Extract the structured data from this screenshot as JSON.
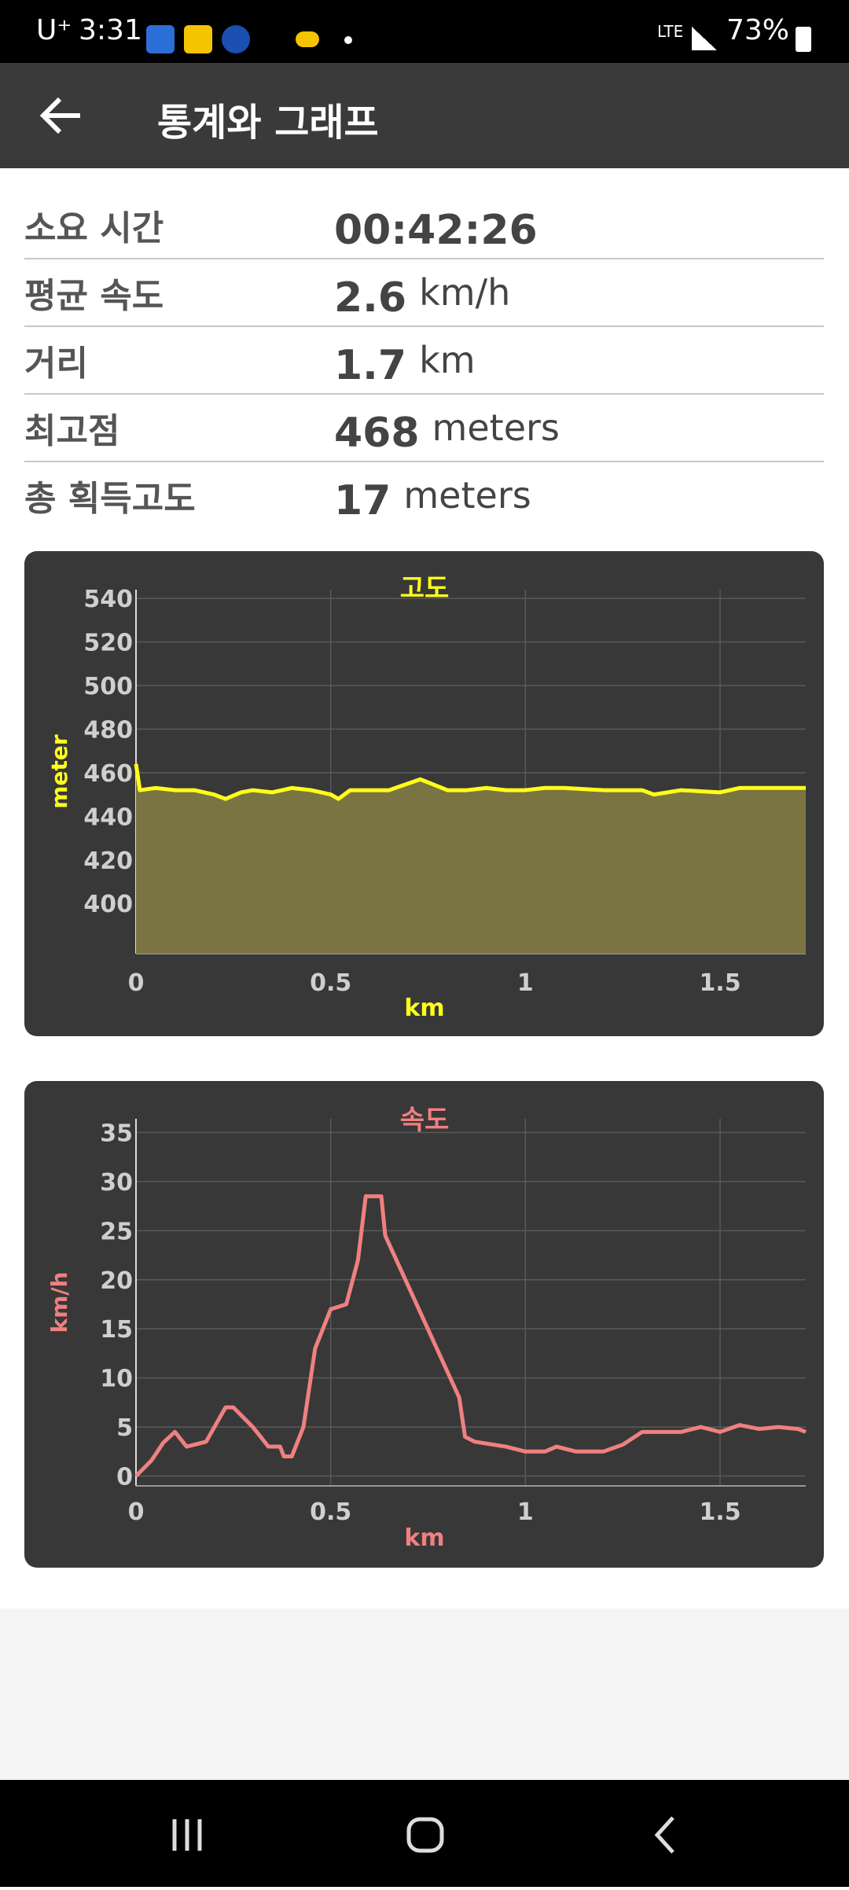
{
  "status_bar": {
    "carrier": "U⁺",
    "time": "3:31",
    "network": "LTE",
    "battery": "73%"
  },
  "app_bar": {
    "title": "통계와 그래프"
  },
  "stats": [
    {
      "label": "소요 시간",
      "value": "00:42:26"
    },
    {
      "label": "평균 속도",
      "value": "2.6",
      "unit": "km/h"
    },
    {
      "label": "거리",
      "value": "1.7",
      "unit": "km"
    },
    {
      "label": "최고점",
      "value": "468",
      "unit": "meters"
    },
    {
      "label": "총 획득고도",
      "value": "17",
      "unit": "meters"
    }
  ],
  "chart_data": [
    {
      "type": "area",
      "title": "고도",
      "x_label": "km",
      "y_label": "meter",
      "x": [
        0,
        0.01,
        0.05,
        0.1,
        0.15,
        0.2,
        0.23,
        0.27,
        0.3,
        0.35,
        0.4,
        0.45,
        0.5,
        0.52,
        0.55,
        0.6,
        0.65,
        0.73,
        0.8,
        0.85,
        0.9,
        0.95,
        1.0,
        1.05,
        1.1,
        1.2,
        1.3,
        1.33,
        1.4,
        1.5,
        1.55,
        1.6,
        1.7,
        1.72
      ],
      "series": [
        {
          "name": "고도",
          "color": "#ffff1a",
          "fill": "#7a7443",
          "values": [
            464,
            452,
            453,
            452,
            452,
            450,
            448,
            451,
            452,
            451,
            453,
            452,
            450,
            448,
            452,
            452,
            452,
            457,
            452,
            452,
            453,
            452,
            452,
            453,
            453,
            452,
            452,
            450,
            452,
            451,
            453,
            453,
            453,
            453
          ]
        }
      ],
      "xlim": [
        0,
        1.72
      ],
      "xticks": [
        0,
        0.5,
        1,
        1.5
      ],
      "ylim": [
        377,
        544
      ],
      "yticks": [
        400,
        420,
        440,
        460,
        480,
        500,
        520,
        540
      ],
      "grid": true
    },
    {
      "type": "line",
      "title": "속도",
      "x_label": "km",
      "y_label": "km/h",
      "x": [
        0,
        0.04,
        0.07,
        0.1,
        0.13,
        0.18,
        0.23,
        0.25,
        0.3,
        0.34,
        0.37,
        0.38,
        0.4,
        0.43,
        0.46,
        0.5,
        0.54,
        0.57,
        0.59,
        0.63,
        0.64,
        0.83,
        0.845,
        0.87,
        0.95,
        1.0,
        1.05,
        1.08,
        1.13,
        1.2,
        1.25,
        1.3,
        1.35,
        1.4,
        1.45,
        1.5,
        1.55,
        1.6,
        1.65,
        1.7,
        1.72
      ],
      "series": [
        {
          "name": "속도",
          "color": "#f08080",
          "values": [
            0,
            1.6,
            3.4,
            4.5,
            3,
            3.5,
            7,
            7,
            5,
            3,
            3,
            2,
            2,
            5,
            13,
            17,
            17.5,
            22,
            28.5,
            28.5,
            24.5,
            8,
            4,
            3.5,
            3,
            2.5,
            2.5,
            3,
            2.5,
            2.5,
            3.2,
            4.5,
            4.5,
            4.5,
            5,
            4.5,
            5.2,
            4.8,
            5,
            4.8,
            4.5
          ]
        }
      ],
      "xlim": [
        0,
        1.72
      ],
      "xticks": [
        0,
        0.5,
        1,
        1.5
      ],
      "ylim": [
        -1,
        36.4
      ],
      "yticks": [
        0,
        5,
        10,
        15,
        20,
        25,
        30,
        35
      ],
      "grid": true
    }
  ]
}
